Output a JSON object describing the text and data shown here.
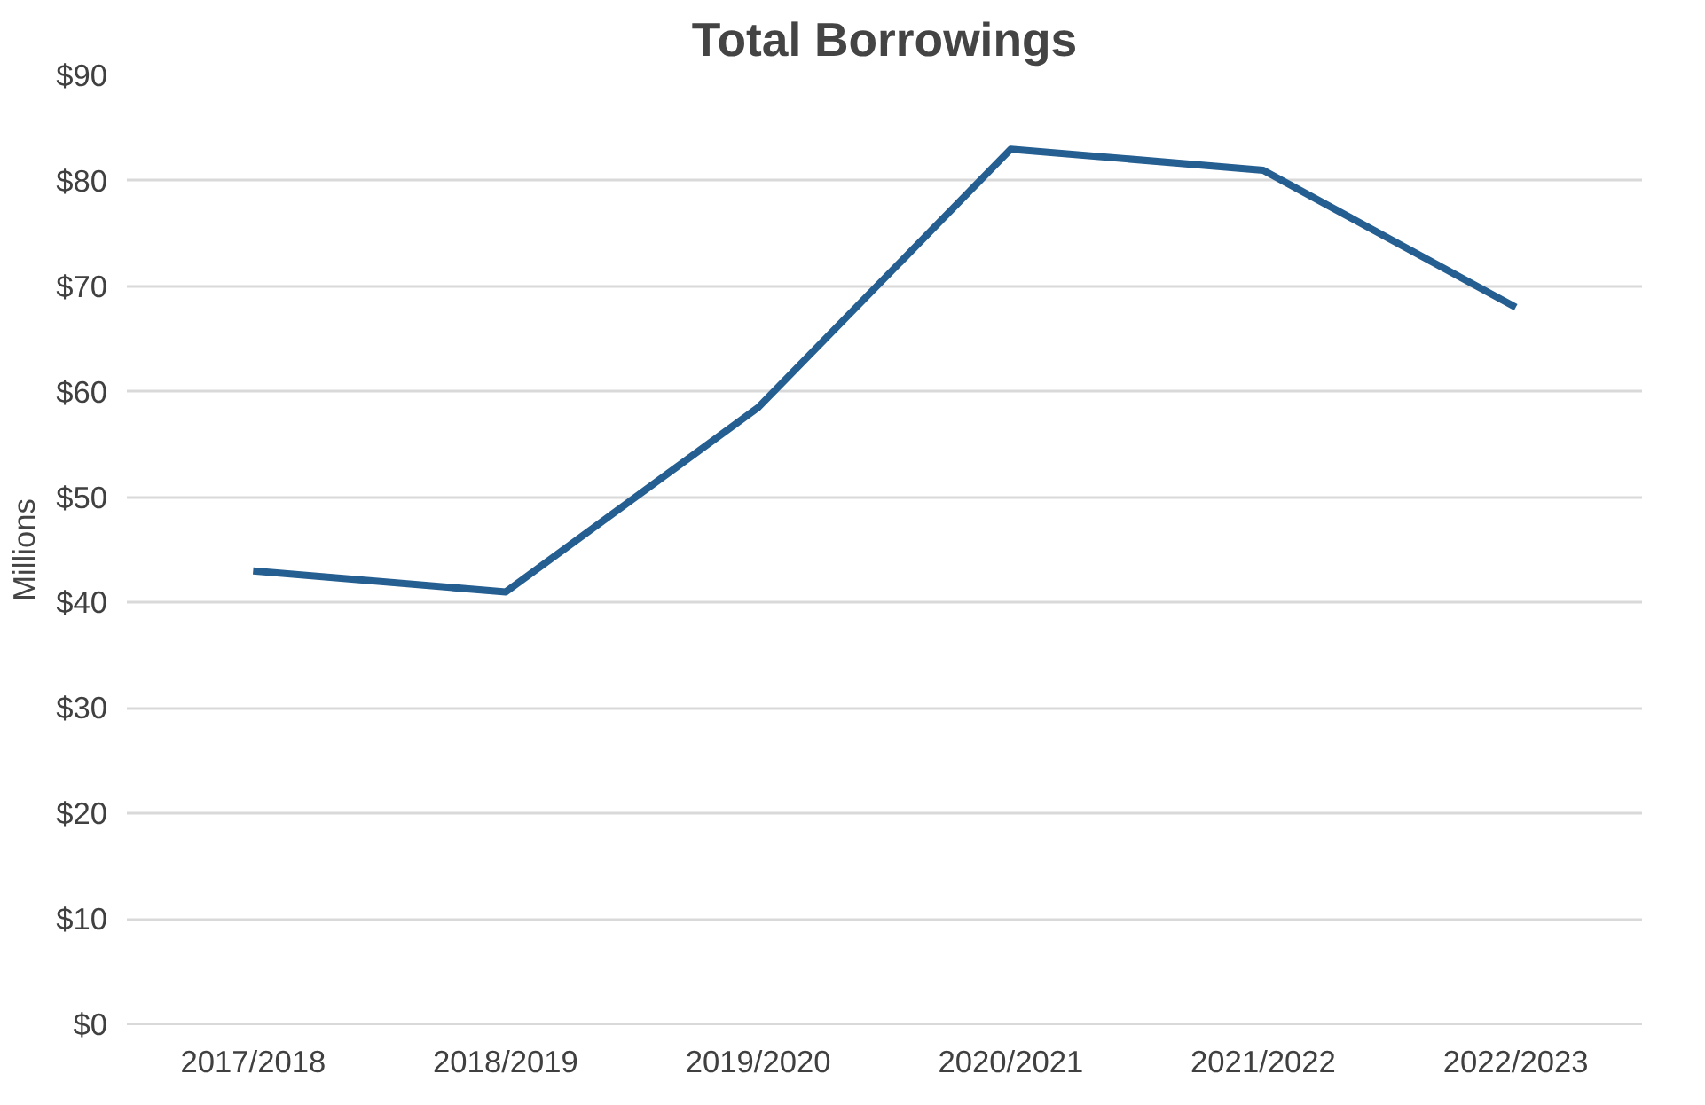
{
  "chart_data": {
    "type": "line",
    "title": "Total Borrowings",
    "ylabel": "Millions",
    "categories": [
      "2017/2018",
      "2018/2019",
      "2019/2020",
      "2020/2021",
      "2021/2022",
      "2022/2023"
    ],
    "series": [
      {
        "color": "#255e91",
        "values": [
          43,
          41,
          58.5,
          83,
          81,
          68
        ]
      }
    ],
    "ylim": [
      0,
      90
    ],
    "yticks": [
      {
        "value": 0,
        "label": "$0"
      },
      {
        "value": 10,
        "label": "$10"
      },
      {
        "value": 20,
        "label": "$20"
      },
      {
        "value": 30,
        "label": "$30"
      },
      {
        "value": 40,
        "label": "$40"
      },
      {
        "value": 50,
        "label": "$50"
      },
      {
        "value": 60,
        "label": "$60"
      },
      {
        "value": 70,
        "label": "$70"
      },
      {
        "value": 80,
        "label": "$80"
      },
      {
        "value": 90,
        "label": "$90"
      }
    ],
    "grid": "y",
    "marker": "none",
    "line_style": "solid"
  }
}
